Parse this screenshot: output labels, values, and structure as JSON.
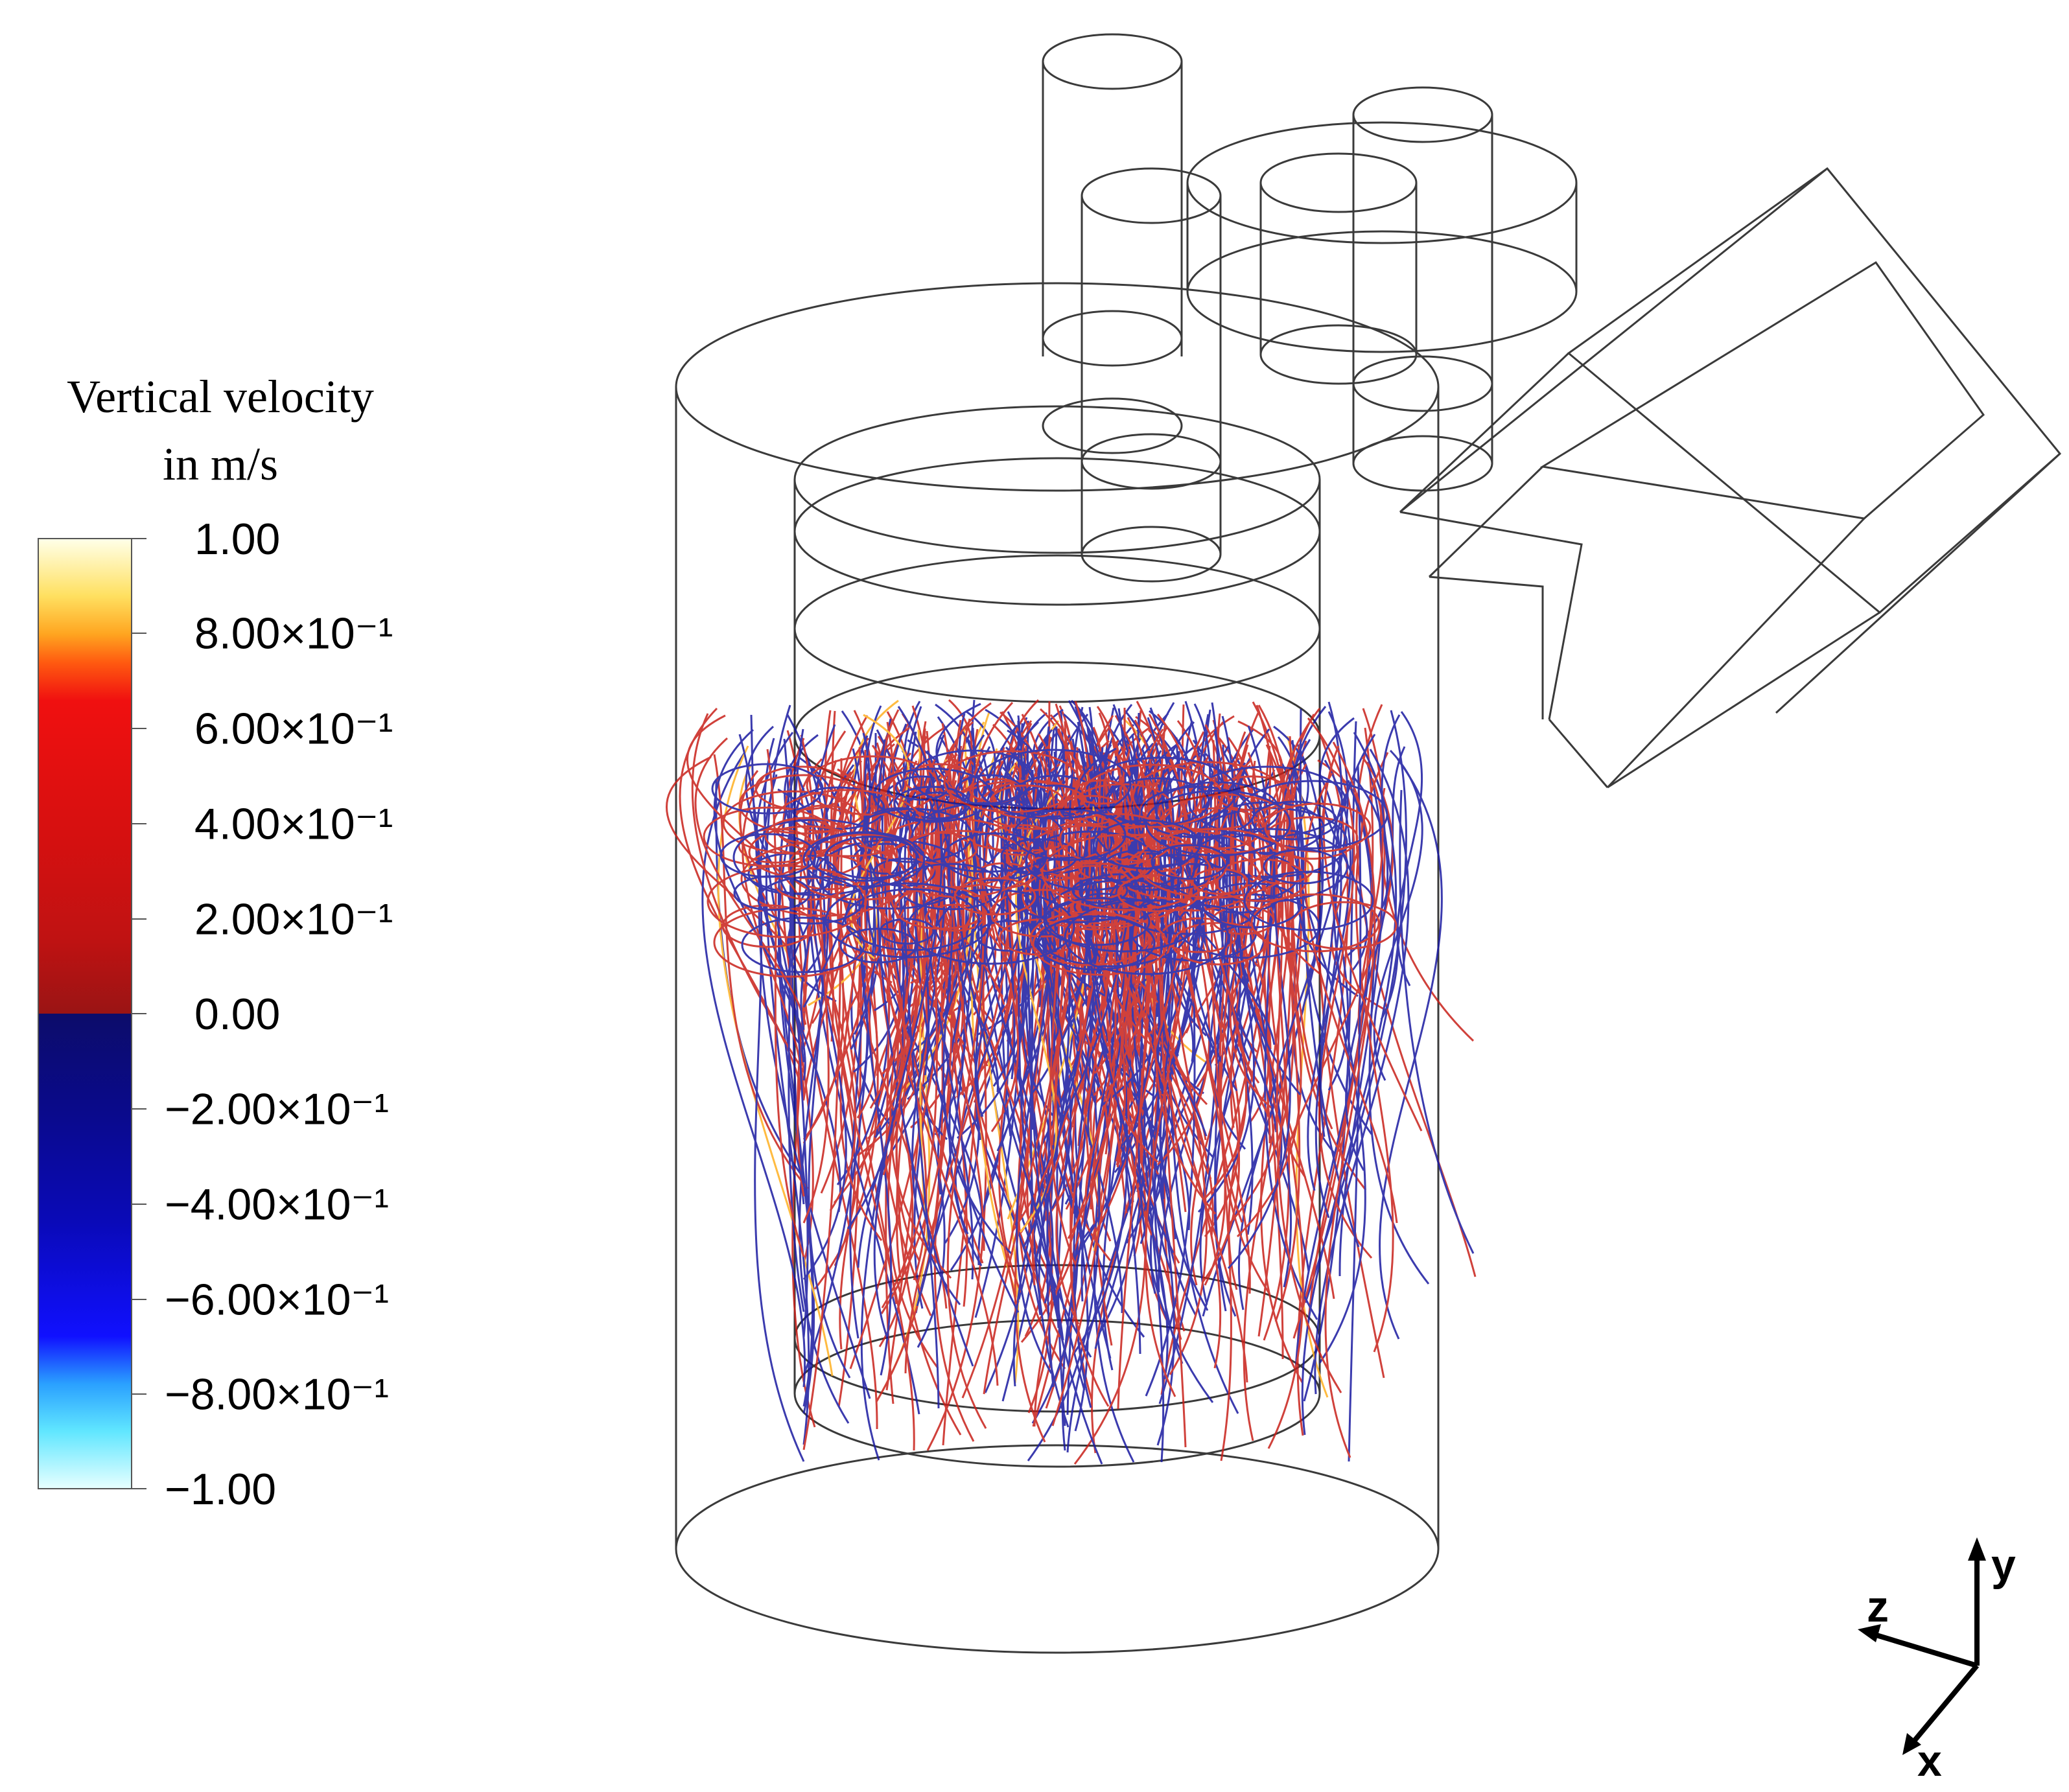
{
  "legend": {
    "title_line1": "Vertical velocity",
    "title_line2": "in m/s",
    "ticks": [
      "1.00",
      "8.00×10⁻¹",
      "6.00×10⁻¹",
      "4.00×10⁻¹",
      "2.00×10⁻¹",
      "0.00",
      "−2.00×10⁻¹",
      "−4.00×10⁻¹",
      "−6.00×10⁻¹",
      "−8.00×10⁻¹",
      "−1.00"
    ],
    "colors": {
      "max": "#ffffe8",
      "positive": "#c01212",
      "negative": "#0a0a8a",
      "min": "#e6ffff"
    }
  },
  "streamline_colors": {
    "upward": "#c8201a",
    "downward": "#1a1aa0",
    "fast_upward": "#ffb020"
  },
  "axes_triad": {
    "y": "y",
    "z": "z",
    "x": "x"
  }
}
